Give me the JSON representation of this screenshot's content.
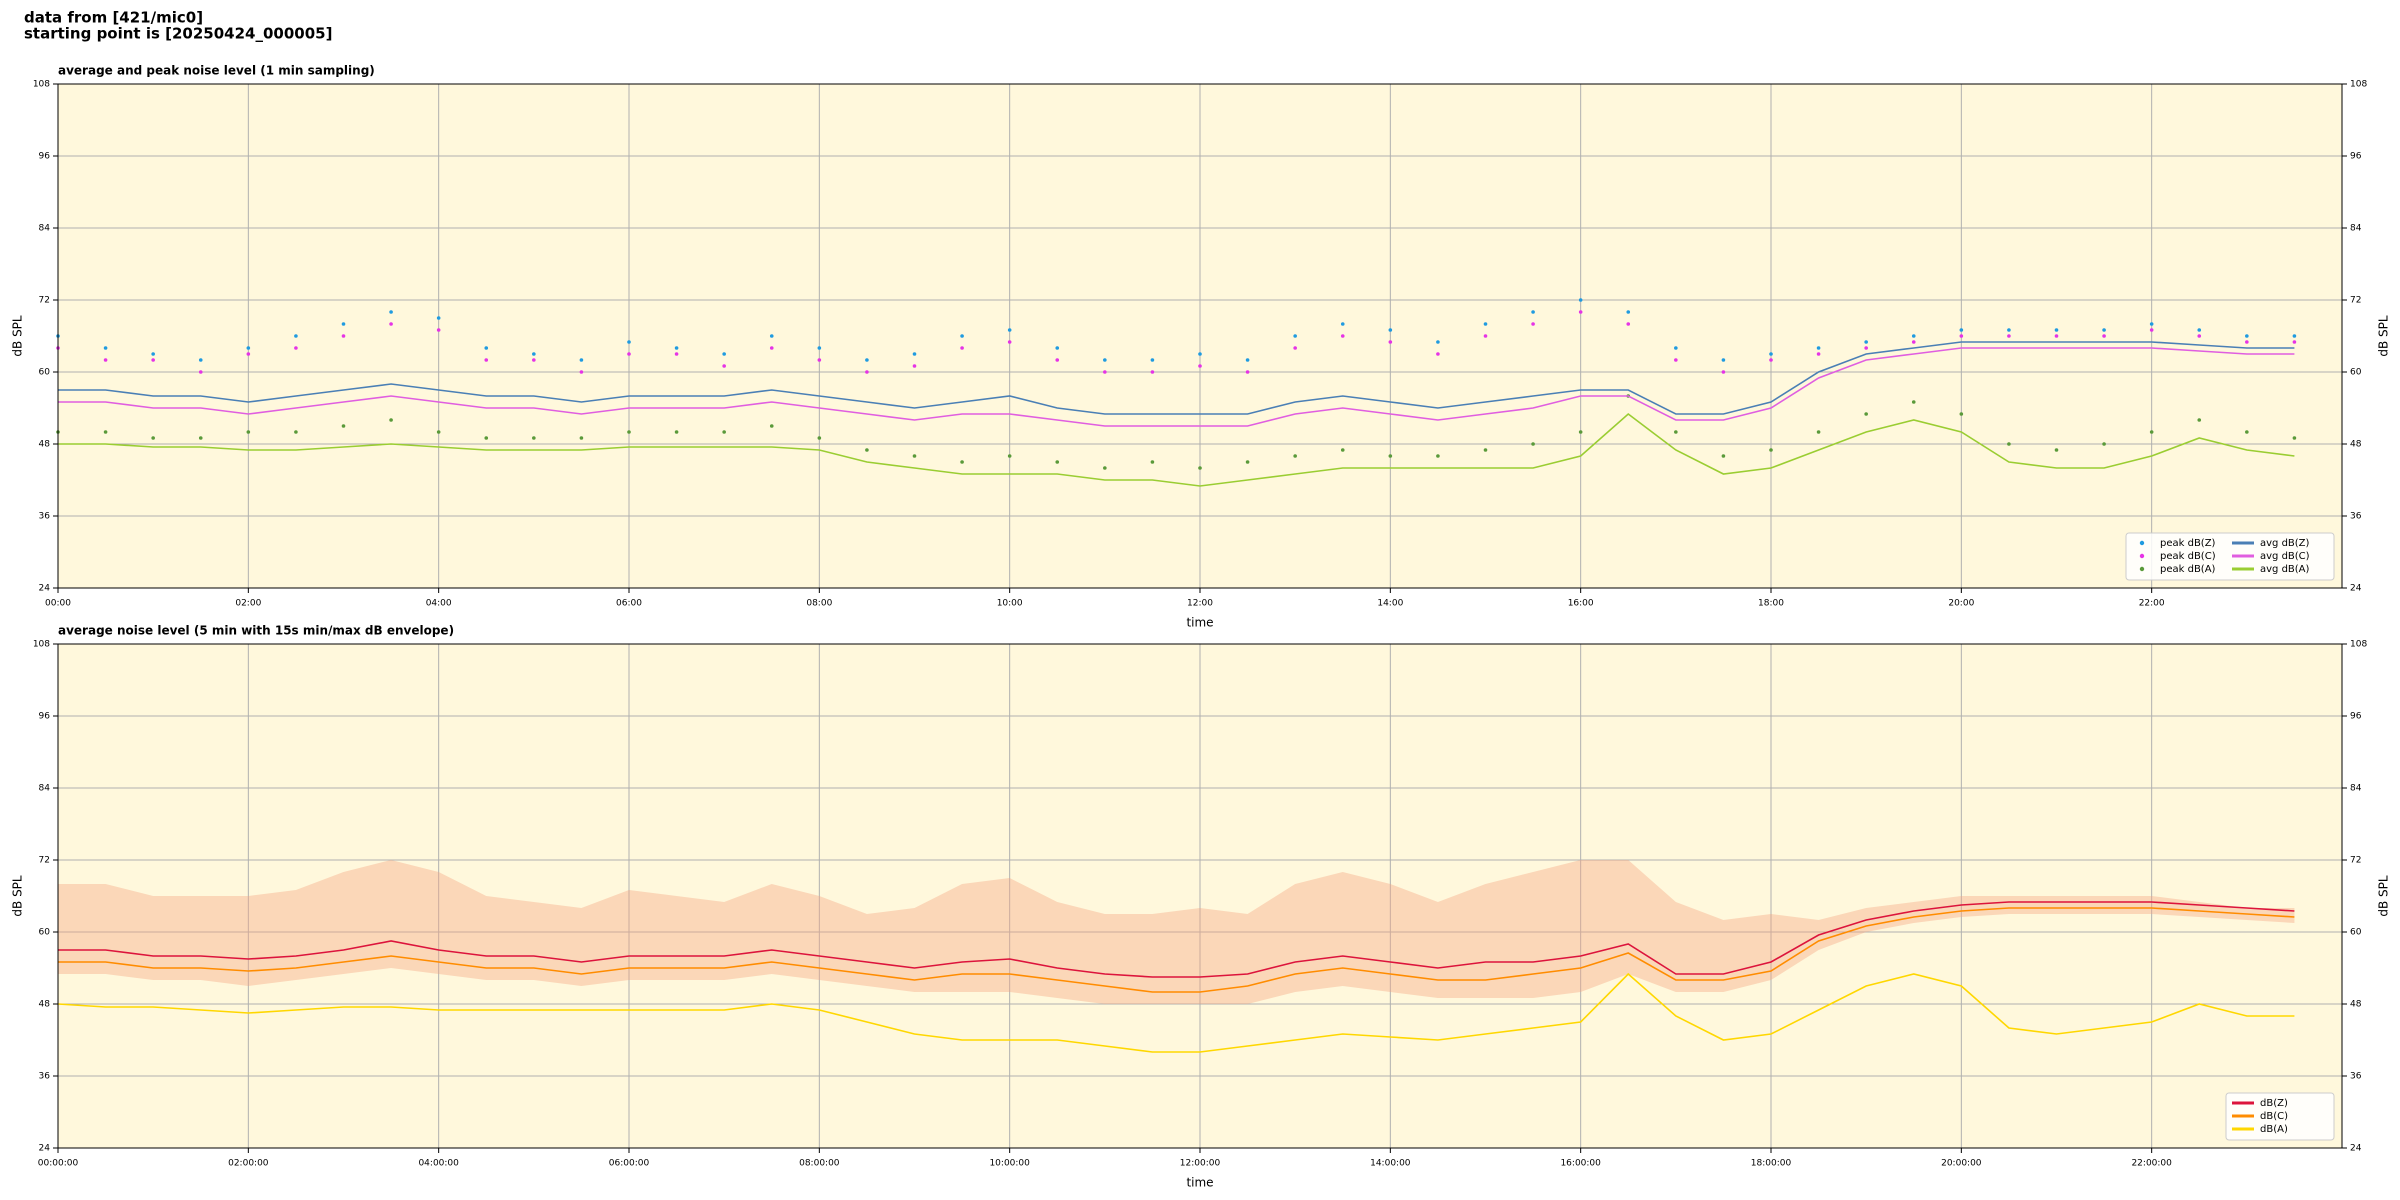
{
  "header": {
    "lines": [
      "data from [421/mic0]",
      "starting point is [20250424_000005]"
    ]
  },
  "chart_data": [
    {
      "type": "line",
      "title": "average and peak noise level (1 min sampling)",
      "xlabel": "time",
      "ylabel": "dB SPL",
      "xlim": [
        0,
        24
      ],
      "ylim": [
        24,
        108
      ],
      "yticks": [
        24,
        36,
        48,
        60,
        72,
        84,
        96,
        108
      ],
      "xticks": [
        {
          "value": 0,
          "label": "00:00"
        },
        {
          "value": 2,
          "label": "02:00"
        },
        {
          "value": 4,
          "label": "04:00"
        },
        {
          "value": 6,
          "label": "06:00"
        },
        {
          "value": 8,
          "label": "08:00"
        },
        {
          "value": 10,
          "label": "10:00"
        },
        {
          "value": 12,
          "label": "12:00"
        },
        {
          "value": 14,
          "label": "14:00"
        },
        {
          "value": 16,
          "label": "16:00"
        },
        {
          "value": 18,
          "label": "18:00"
        },
        {
          "value": 20,
          "label": "20:00"
        },
        {
          "value": 22,
          "label": "22:00"
        }
      ],
      "grid": true,
      "legend": "lower right",
      "background": "#fff8dc",
      "x": [
        0,
        0.5,
        1,
        1.5,
        2,
        2.5,
        3,
        3.5,
        4,
        4.5,
        5,
        5.5,
        6,
        6.5,
        7,
        7.5,
        8,
        8.5,
        9,
        9.5,
        10,
        10.5,
        11,
        11.5,
        12,
        12.5,
        13,
        13.5,
        14,
        14.5,
        15,
        15.5,
        16,
        16.5,
        17,
        17.5,
        18,
        18.5,
        19,
        19.5,
        20,
        20.5,
        21,
        21.5,
        22,
        22.5,
        23,
        23.5
      ],
      "series": [
        {
          "name": "peak dB(Z)",
          "kind": "scatter",
          "color": "#1f9be0",
          "values": [
            66,
            64,
            63,
            62,
            64,
            66,
            68,
            70,
            69,
            64,
            63,
            62,
            65,
            64,
            63,
            66,
            64,
            62,
            63,
            66,
            67,
            64,
            62,
            62,
            63,
            62,
            66,
            68,
            67,
            65,
            68,
            70,
            72,
            70,
            64,
            62,
            63,
            64,
            65,
            66,
            67,
            67,
            67,
            67,
            68,
            67,
            66,
            66
          ]
        },
        {
          "name": "peak dB(C)",
          "kind": "scatter",
          "color": "#e633e6",
          "values": [
            64,
            62,
            62,
            60,
            63,
            64,
            66,
            68,
            67,
            62,
            62,
            60,
            63,
            63,
            61,
            64,
            62,
            60,
            61,
            64,
            65,
            62,
            60,
            60,
            61,
            60,
            64,
            66,
            65,
            63,
            66,
            68,
            70,
            68,
            62,
            60,
            62,
            63,
            64,
            65,
            66,
            66,
            66,
            66,
            67,
            66,
            65,
            65
          ]
        },
        {
          "name": "peak dB(A)",
          "kind": "scatter",
          "color": "#5a9a3a",
          "values": [
            50,
            50,
            49,
            49,
            50,
            50,
            51,
            52,
            50,
            49,
            49,
            49,
            50,
            50,
            50,
            51,
            49,
            47,
            46,
            45,
            46,
            45,
            44,
            45,
            44,
            45,
            46,
            47,
            46,
            46,
            47,
            48,
            50,
            56,
            50,
            46,
            47,
            50,
            53,
            55,
            53,
            48,
            47,
            48,
            50,
            52,
            50,
            49
          ]
        },
        {
          "name": "avg dB(Z)",
          "kind": "line",
          "color": "#4a7fb5",
          "values": [
            57,
            57,
            56,
            56,
            55,
            56,
            57,
            58,
            57,
            56,
            56,
            55,
            56,
            56,
            56,
            57,
            56,
            55,
            54,
            55,
            56,
            54,
            53,
            53,
            53,
            53,
            55,
            56,
            55,
            54,
            55,
            56,
            57,
            57,
            53,
            53,
            55,
            60,
            63,
            64,
            65,
            65,
            65,
            65,
            65,
            64.5,
            64,
            64
          ]
        },
        {
          "name": "avg dB(C)",
          "kind": "line",
          "color": "#e05ee0",
          "values": [
            55,
            55,
            54,
            54,
            53,
            54,
            55,
            56,
            55,
            54,
            54,
            53,
            54,
            54,
            54,
            55,
            54,
            53,
            52,
            53,
            53,
            52,
            51,
            51,
            51,
            51,
            53,
            54,
            53,
            52,
            53,
            54,
            56,
            56,
            52,
            52,
            54,
            59,
            62,
            63,
            64,
            64,
            64,
            64,
            64,
            63.5,
            63,
            63
          ]
        },
        {
          "name": "avg dB(A)",
          "kind": "line",
          "color": "#9acd32",
          "values": [
            48,
            48,
            47.5,
            47.5,
            47,
            47,
            47.5,
            48,
            47.5,
            47,
            47,
            47,
            47.5,
            47.5,
            47.5,
            47.5,
            47,
            45,
            44,
            43,
            43,
            43,
            42,
            42,
            41,
            42,
            43,
            44,
            44,
            44,
            44,
            44,
            46,
            53,
            47,
            43,
            44,
            47,
            50,
            52,
            50,
            45,
            44,
            44,
            46,
            49,
            47,
            46
          ]
        }
      ]
    },
    {
      "type": "line",
      "title": "average noise level (5 min with 15s min/max dB envelope)",
      "xlabel": "time",
      "ylabel": "dB SPL",
      "xlim": [
        0,
        24
      ],
      "ylim": [
        24,
        108
      ],
      "yticks": [
        24,
        36,
        48,
        60,
        72,
        84,
        96,
        108
      ],
      "xticks": [
        {
          "value": 0,
          "label": "00:00:00"
        },
        {
          "value": 2,
          "label": "02:00:00"
        },
        {
          "value": 4,
          "label": "04:00:00"
        },
        {
          "value": 6,
          "label": "06:00:00"
        },
        {
          "value": 8,
          "label": "08:00:00"
        },
        {
          "value": 10,
          "label": "10:00:00"
        },
        {
          "value": 12,
          "label": "12:00:00"
        },
        {
          "value": 14,
          "label": "14:00:00"
        },
        {
          "value": 16,
          "label": "16:00:00"
        },
        {
          "value": 18,
          "label": "18:00:00"
        },
        {
          "value": 20,
          "label": "20:00:00"
        },
        {
          "value": 22,
          "label": "22:00:00"
        }
      ],
      "grid": true,
      "legend": "lower right",
      "background": "#fff8dc",
      "x": [
        0,
        0.5,
        1,
        1.5,
        2,
        2.5,
        3,
        3.5,
        4,
        4.5,
        5,
        5.5,
        6,
        6.5,
        7,
        7.5,
        8,
        8.5,
        9,
        9.5,
        10,
        10.5,
        11,
        11.5,
        12,
        12.5,
        13,
        13.5,
        14,
        14.5,
        15,
        15.5,
        16,
        16.5,
        17,
        17.5,
        18,
        18.5,
        19,
        19.5,
        20,
        20.5,
        21,
        21.5,
        22,
        22.5,
        23,
        23.5
      ],
      "envelope": {
        "color": "#f4a582",
        "upper": [
          68,
          68,
          66,
          66,
          66,
          67,
          70,
          72,
          70,
          66,
          65,
          64,
          67,
          66,
          65,
          68,
          66,
          63,
          64,
          68,
          69,
          65,
          63,
          63,
          64,
          63,
          68,
          70,
          68,
          65,
          68,
          70,
          72,
          72,
          65,
          62,
          63,
          62,
          64,
          65,
          66,
          66,
          66,
          66,
          66,
          65,
          64,
          64
        ],
        "lower": [
          53,
          53,
          52,
          52,
          51,
          52,
          53,
          54,
          53,
          52,
          52,
          51,
          52,
          52,
          52,
          53,
          52,
          51,
          50,
          50,
          50,
          49,
          48,
          48,
          48,
          48,
          50,
          51,
          50,
          49,
          49,
          49,
          50,
          53,
          50,
          50,
          52,
          57,
          60,
          61.5,
          62.5,
          63,
          63,
          63,
          63,
          62.5,
          62,
          61.5
        ]
      },
      "series": [
        {
          "name": "dB(Z)",
          "kind": "line",
          "color": "#dc143c",
          "values": [
            57,
            57,
            56,
            56,
            55.5,
            56,
            57,
            58.5,
            57,
            56,
            56,
            55,
            56,
            56,
            56,
            57,
            56,
            55,
            54,
            55,
            55.5,
            54,
            53,
            52.5,
            52.5,
            53,
            55,
            56,
            55,
            54,
            55,
            55,
            56,
            58,
            53,
            53,
            55,
            59.5,
            62,
            63.5,
            64.5,
            65,
            65,
            65,
            65,
            64.5,
            64,
            63.5
          ]
        },
        {
          "name": "dB(C)",
          "kind": "line",
          "color": "#ff8c00",
          "values": [
            55,
            55,
            54,
            54,
            53.5,
            54,
            55,
            56,
            55,
            54,
            54,
            53,
            54,
            54,
            54,
            55,
            54,
            53,
            52,
            53,
            53,
            52,
            51,
            50,
            50,
            51,
            53,
            54,
            53,
            52,
            52,
            53,
            54,
            56.5,
            52,
            52,
            53.5,
            58.5,
            61,
            62.5,
            63.5,
            64,
            64,
            64,
            64,
            63.5,
            63,
            62.5
          ]
        },
        {
          "name": "dB(A)",
          "kind": "line",
          "color": "#ffd700",
          "values": [
            48,
            47.5,
            47.5,
            47,
            46.5,
            47,
            47.5,
            47.5,
            47,
            47,
            47,
            47,
            47,
            47,
            47,
            48,
            47,
            45,
            43,
            42,
            42,
            42,
            41,
            40,
            40,
            41,
            42,
            43,
            42.5,
            42,
            43,
            44,
            45,
            53,
            46,
            42,
            43,
            47,
            51,
            53,
            51,
            44,
            43,
            44,
            45,
            48,
            46,
            46
          ]
        }
      ]
    }
  ]
}
